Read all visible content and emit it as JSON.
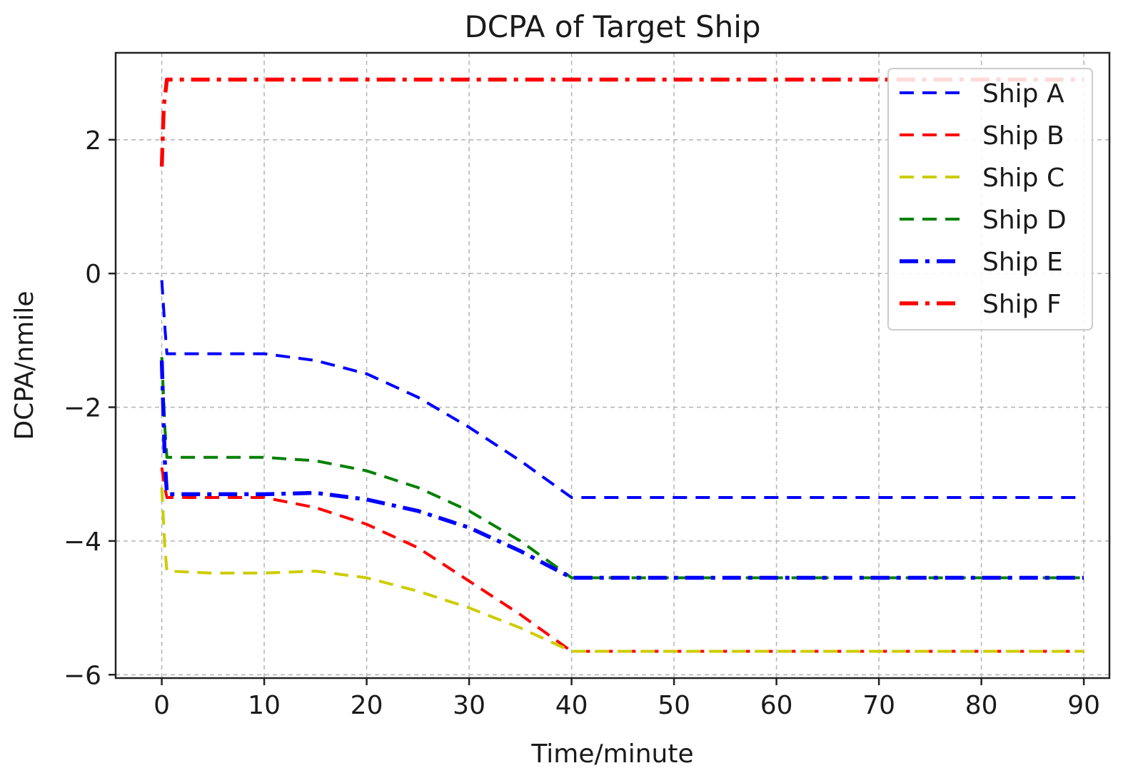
{
  "chart_data": {
    "type": "line",
    "title": "DCPA of Target Ship",
    "xlabel": "Time/minute",
    "ylabel": "DCPA/nmile",
    "xlim": [
      -4.5,
      92.5
    ],
    "ylim": [
      -6.05,
      3.3
    ],
    "xticks": [
      0,
      10,
      20,
      30,
      40,
      50,
      60,
      70,
      80,
      90
    ],
    "yticks": [
      -6,
      -4,
      -2,
      0,
      2
    ],
    "xtick_labels": [
      "0",
      "10",
      "20",
      "30",
      "40",
      "50",
      "60",
      "70",
      "80",
      "90"
    ],
    "ytick_labels": [
      "−6",
      "−4",
      "−2",
      "0",
      "2"
    ],
    "grid": true,
    "legend_position": "top-right",
    "series": [
      {
        "name": "Ship A",
        "color": "#0000ff",
        "style": "dashed",
        "points": [
          [
            0,
            -0.1
          ],
          [
            0.3,
            -0.8
          ],
          [
            0.5,
            -1.2
          ],
          [
            5,
            -1.2
          ],
          [
            10,
            -1.2
          ],
          [
            15,
            -1.3
          ],
          [
            20,
            -1.5
          ],
          [
            25,
            -1.85
          ],
          [
            30,
            -2.3
          ],
          [
            35,
            -2.8
          ],
          [
            40,
            -3.35
          ],
          [
            50,
            -3.35
          ],
          [
            60,
            -3.35
          ],
          [
            70,
            -3.35
          ],
          [
            80,
            -3.35
          ],
          [
            90,
            -3.35
          ]
        ]
      },
      {
        "name": "Ship B",
        "color": "#ff0000",
        "style": "dashed",
        "points": [
          [
            0,
            -2.9
          ],
          [
            0.3,
            -3.2
          ],
          [
            0.5,
            -3.35
          ],
          [
            5,
            -3.35
          ],
          [
            10,
            -3.35
          ],
          [
            15,
            -3.5
          ],
          [
            20,
            -3.75
          ],
          [
            25,
            -4.1
          ],
          [
            30,
            -4.6
          ],
          [
            35,
            -5.1
          ],
          [
            40,
            -5.65
          ],
          [
            50,
            -5.65
          ],
          [
            60,
            -5.65
          ],
          [
            70,
            -5.65
          ],
          [
            80,
            -5.65
          ],
          [
            90,
            -5.65
          ]
        ]
      },
      {
        "name": "Ship C",
        "color": "#cccc00",
        "style": "dashed",
        "points": [
          [
            0,
            -3.2
          ],
          [
            0.3,
            -4.1
          ],
          [
            0.5,
            -4.45
          ],
          [
            5,
            -4.48
          ],
          [
            10,
            -4.48
          ],
          [
            15,
            -4.45
          ],
          [
            20,
            -4.55
          ],
          [
            25,
            -4.75
          ],
          [
            30,
            -5.0
          ],
          [
            35,
            -5.3
          ],
          [
            40,
            -5.65
          ],
          [
            50,
            -5.65
          ],
          [
            60,
            -5.65
          ],
          [
            70,
            -5.65
          ],
          [
            80,
            -5.65
          ],
          [
            90,
            -5.65
          ]
        ]
      },
      {
        "name": "Ship D",
        "color": "#008000",
        "style": "dashed",
        "points": [
          [
            0,
            -1.25
          ],
          [
            0.3,
            -2.3
          ],
          [
            0.5,
            -2.75
          ],
          [
            5,
            -2.75
          ],
          [
            10,
            -2.75
          ],
          [
            15,
            -2.8
          ],
          [
            20,
            -2.95
          ],
          [
            25,
            -3.2
          ],
          [
            30,
            -3.55
          ],
          [
            35,
            -4.0
          ],
          [
            40,
            -4.55
          ],
          [
            50,
            -4.55
          ],
          [
            60,
            -4.55
          ],
          [
            70,
            -4.55
          ],
          [
            80,
            -4.55
          ],
          [
            90,
            -4.55
          ]
        ]
      },
      {
        "name": "Ship E",
        "color": "#0000ff",
        "style": "dashdot",
        "points": [
          [
            0,
            -1.3
          ],
          [
            0.3,
            -2.8
          ],
          [
            0.5,
            -3.3
          ],
          [
            5,
            -3.3
          ],
          [
            10,
            -3.3
          ],
          [
            15,
            -3.28
          ],
          [
            20,
            -3.38
          ],
          [
            25,
            -3.55
          ],
          [
            30,
            -3.8
          ],
          [
            35,
            -4.15
          ],
          [
            40,
            -4.55
          ],
          [
            50,
            -4.55
          ],
          [
            60,
            -4.55
          ],
          [
            70,
            -4.55
          ],
          [
            80,
            -4.55
          ],
          [
            90,
            -4.55
          ]
        ]
      },
      {
        "name": "Ship F",
        "color": "#ff0000",
        "style": "dashdot",
        "points": [
          [
            0,
            1.6
          ],
          [
            0.2,
            2.5
          ],
          [
            0.5,
            2.9
          ],
          [
            10,
            2.9
          ],
          [
            20,
            2.9
          ],
          [
            30,
            2.9
          ],
          [
            40,
            2.9
          ],
          [
            50,
            2.9
          ],
          [
            60,
            2.9
          ],
          [
            70,
            2.9
          ],
          [
            80,
            2.9
          ],
          [
            90,
            2.9
          ]
        ]
      }
    ]
  }
}
